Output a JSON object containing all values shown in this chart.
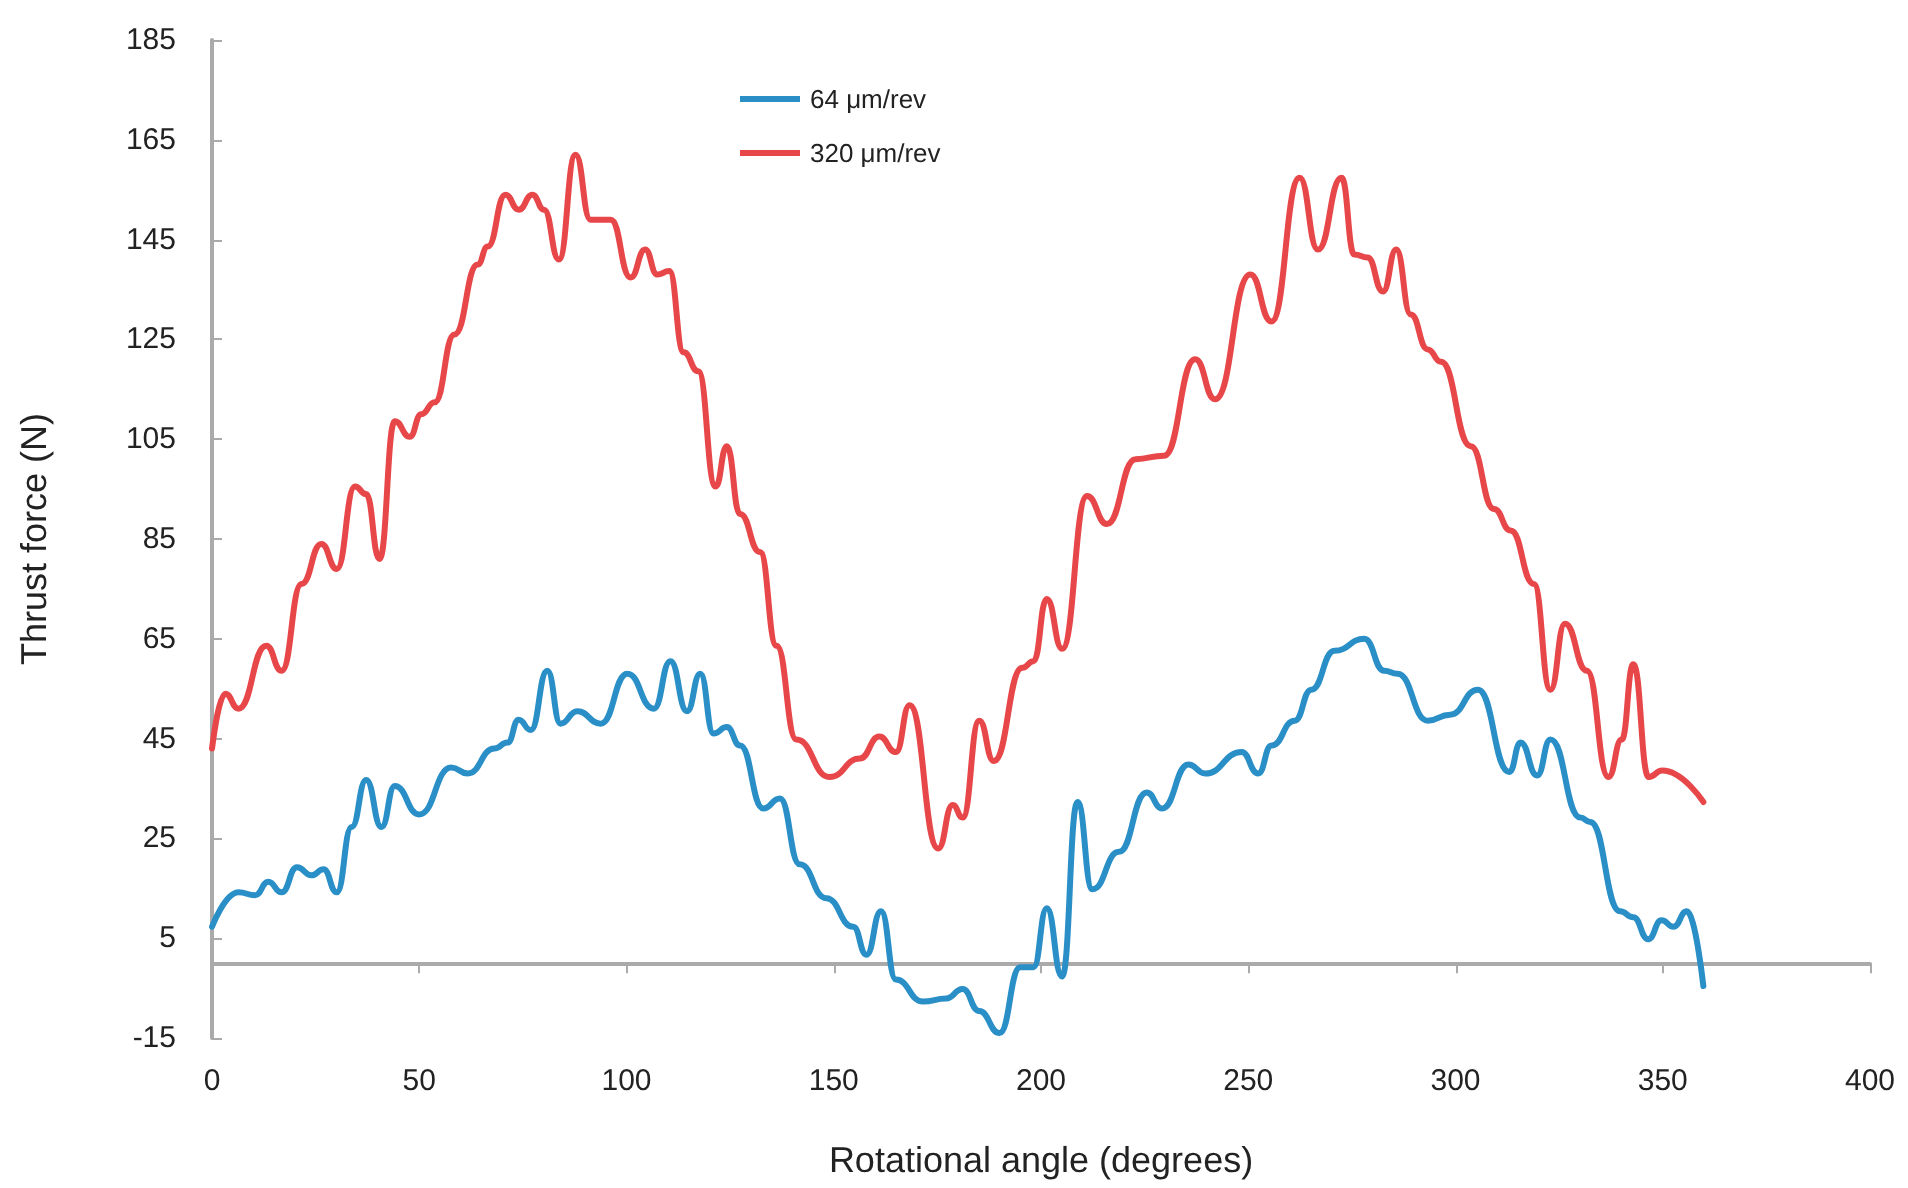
{
  "chart_data": {
    "type": "line",
    "xlabel": "Rotational angle (degrees)",
    "ylabel": "Thrust force (N)",
    "xlim": [
      0,
      400
    ],
    "xticks": [
      0,
      50,
      100,
      150,
      200,
      250,
      300,
      350,
      400
    ],
    "ylim": [
      -15,
      185
    ],
    "yticks": [
      -15,
      5,
      25,
      45,
      65,
      85,
      105,
      125,
      145,
      165,
      185
    ],
    "grid": false,
    "legend": "top",
    "marker": "none",
    "line_style": "solid",
    "series": [
      {
        "name": "64 μm/rev",
        "color": "#2a8fc7",
        "x": [
          0,
          6.4,
          10.4,
          13.6,
          16.8,
          20.5,
          24,
          26.9,
          30.1,
          33.7,
          37.2,
          40.9,
          44.1,
          50,
          57.7,
          61.7,
          68.1,
          71.3,
          74,
          76.9,
          80.9,
          84.1,
          88.1,
          93.8,
          100.2,
          106.6,
          110.6,
          114.6,
          117.8,
          121,
          124.2,
          127.4,
          133,
          137,
          141.8,
          148.2,
          154.7,
          157.9,
          161.4,
          165,
          171.5,
          177.1,
          181.1,
          185.1,
          190,
          195,
          198.2,
          201.4,
          205.1,
          208.8,
          212.4,
          218.8,
          225.5,
          229.2,
          235.6,
          239.6,
          248.4,
          252.4,
          255.6,
          261.2,
          265.2,
          270.8,
          278,
          282.8,
          286,
          293.3,
          298.7,
          305.4,
          313,
          315.7,
          319.7,
          322.9,
          330.1,
          332.5,
          339.7,
          342.9,
          346.5,
          349.7,
          352.6,
          355.8,
          359.8
        ],
        "values": [
          7.3,
          14.2,
          13.6,
          16.3,
          14.2,
          19.2,
          17.6,
          18.8,
          14.2,
          27.3,
          36.7,
          27.3,
          35.5,
          29.8,
          39.2,
          38,
          43,
          44.2,
          48.8,
          46.7,
          58.6,
          48,
          50.5,
          48,
          58,
          51,
          60.5,
          50.5,
          58,
          46,
          47.3,
          43.6,
          31,
          33,
          19.8,
          13,
          7.3,
          1.7,
          10.4,
          -3.3,
          -7.7,
          -7.1,
          -5.2,
          -9.6,
          -14,
          -0.8,
          -0.8,
          11,
          -2.7,
          32.3,
          14.8,
          22.3,
          34.2,
          31,
          39.8,
          38,
          42.3,
          38,
          43.6,
          48.6,
          54.8,
          62.6,
          65,
          58.6,
          58,
          48.6,
          49.8,
          54.8,
          38.3,
          44.2,
          37.6,
          44.8,
          29.2,
          28.3,
          10.4,
          9.2,
          4.8,
          8.6,
          7.3,
          10.4,
          -4.6
        ]
      },
      {
        "name": "320 μm/rev",
        "color": "#e8474a",
        "x": [
          0,
          3.2,
          6.4,
          13.1,
          16.8,
          21.6,
          26.4,
          30.1,
          34.5,
          37.2,
          40.4,
          44.1,
          47.7,
          50.5,
          53.7,
          58.5,
          64.1,
          66.5,
          70.8,
          74,
          77.3,
          80.1,
          83.7,
          87.7,
          91.3,
          96.2,
          101,
          104.5,
          107.4,
          110.3,
          113.8,
          117.3,
          121.5,
          124.2,
          127.4,
          132.2,
          136.2,
          141,
          149,
          156.3,
          161,
          165,
          168.3,
          175.2,
          178.7,
          181.1,
          185.1,
          188.6,
          195.5,
          198.2,
          201.4,
          205.1,
          211.1,
          215.9,
          222.8,
          229.7,
          237.2,
          242,
          250.5,
          255.6,
          262.4,
          266.8,
          272.5,
          275.6,
          278.8,
          282.5,
          285.7,
          289.2,
          293.3,
          296.5,
          303.7,
          309.3,
          313.3,
          318.9,
          322.9,
          326.4,
          331.7,
          336.9,
          340.1,
          342.9,
          346.6,
          349.9,
          359.8
        ],
        "values": [
          43,
          54,
          51,
          63.6,
          58.6,
          76,
          84,
          79,
          95.5,
          94,
          81,
          108.6,
          105.5,
          110,
          112.4,
          126,
          140,
          143.6,
          154,
          151,
          154,
          151,
          141,
          162,
          149,
          149,
          137.4,
          143,
          138,
          138.7,
          122.4,
          118.6,
          95.5,
          103.6,
          90,
          82.4,
          63.6,
          44.8,
          37.3,
          41,
          45.4,
          42.3,
          51.7,
          23,
          31.7,
          29.2,
          48.6,
          40.5,
          59.2,
          60.5,
          73,
          63,
          93.6,
          88,
          101,
          101.7,
          121,
          113,
          138,
          128.6,
          157.4,
          143,
          157.4,
          142,
          141.4,
          134.6,
          143,
          130,
          123,
          120.5,
          103.6,
          91,
          86.7,
          76,
          54.8,
          68,
          58.6,
          37.3,
          44.8,
          59.9,
          37.3,
          38.6,
          32.3
        ]
      }
    ]
  }
}
